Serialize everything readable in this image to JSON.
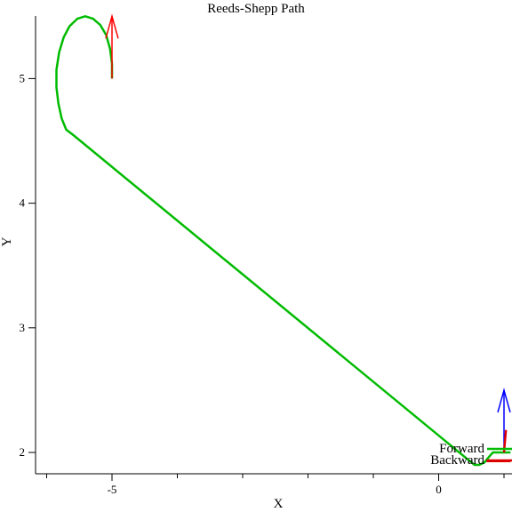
{
  "chart_data": {
    "type": "line",
    "title": "Reeds-Shepp Path",
    "xlabel": "X",
    "ylabel": "Y",
    "xlim": [
      -6.0,
      1.1
    ],
    "ylim": [
      1.85,
      5.5
    ],
    "x_ticks": [
      -5,
      0
    ],
    "x_tick_labels": [
      "-5",
      "0"
    ],
    "x_minor_ticks": [
      -6,
      -4,
      -3,
      -2,
      -1,
      1
    ],
    "y_ticks": [
      2,
      3,
      4,
      5
    ],
    "y_tick_labels": [
      "2",
      "3",
      "4",
      "5"
    ],
    "grid": false,
    "legend_position": "bottom-right",
    "series": [
      {
        "name": "Forward",
        "color": "#00bb00",
        "points": [
          [
            -5.0,
            5.0
          ],
          [
            -5.0,
            5.12
          ],
          [
            -5.03,
            5.24
          ],
          [
            -5.09,
            5.35
          ],
          [
            -5.18,
            5.43
          ],
          [
            -5.29,
            5.48
          ],
          [
            -5.41,
            5.5
          ],
          [
            -5.53,
            5.48
          ],
          [
            -5.65,
            5.42
          ],
          [
            -5.74,
            5.33
          ],
          [
            -5.81,
            5.21
          ],
          [
            -5.85,
            5.07
          ],
          [
            -5.85,
            4.93
          ],
          [
            -5.82,
            4.8
          ],
          [
            -5.77,
            4.68
          ],
          [
            -5.7,
            4.59
          ],
          [
            -5.6,
            4.55
          ],
          [
            0.5,
            1.92
          ],
          [
            0.55,
            1.9
          ],
          [
            0.62,
            1.9
          ],
          [
            0.7,
            1.92
          ],
          [
            0.78,
            1.97
          ],
          [
            0.83,
            2.0
          ],
          [
            0.87,
            2.0
          ],
          [
            1.1,
            2.0
          ]
        ]
      },
      {
        "name": "Backward",
        "color": "#dd0000",
        "points": [
          [
            0.73,
            1.93
          ],
          [
            0.8,
            1.93
          ],
          [
            1.1,
            1.93
          ]
        ]
      }
    ],
    "annotations": [
      {
        "type": "arrow",
        "x": -5.0,
        "y": 5.0,
        "dx": 0.0,
        "dy": 0.5,
        "color": "#ff0000",
        "label": "start heading"
      },
      {
        "type": "arrow",
        "x": 1.0,
        "y": 2.0,
        "dx": 0.0,
        "dy": 0.5,
        "color": "#0000ff",
        "label": "goal heading"
      },
      {
        "type": "segment",
        "x": 1.0,
        "y": 2.0,
        "dx": 0.03,
        "dy": 0.18,
        "color": "#dd0000",
        "label": "goal reverse segment"
      }
    ]
  }
}
